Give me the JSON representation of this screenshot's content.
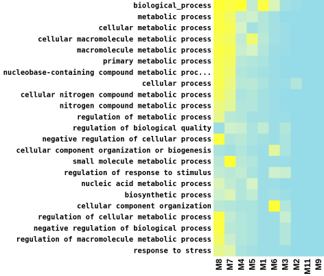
{
  "chart_data": {
    "type": "heatmap",
    "columns": [
      "M8",
      "M7",
      "M4",
      "M5",
      "M1",
      "M6",
      "M3",
      "M2",
      "M11",
      "M9"
    ],
    "rows": [
      "biological_process",
      "metabolic process",
      "cellular metabolic process",
      "cellular macromolecule metabolic process",
      "macromolecule metabolic process",
      "primary metabolic process",
      "nucleobase-containing compound metabolic proc...",
      "cellular process",
      "cellular nitrogen compound metabolic process",
      "nitrogen compound metabolic process",
      "regulation of metabolic process",
      "regulation of biological quality",
      "negative regulation of cellular process",
      "cellular component organization or biogenesis",
      "small molecule metabolic process",
      "regulation of response to stimulus",
      "nucleic acid metabolic process",
      "biosynthetic process",
      "cellular component organization",
      "regulation of cellular metabolic process",
      "negative regulation of biological process",
      "regulation of macromolecule metabolic process",
      "response to stress"
    ],
    "values": [
      [
        1.0,
        0.95,
        1.0,
        0.35,
        0.95,
        0.55,
        0.15,
        0.1,
        0.05,
        0.05
      ],
      [
        0.95,
        0.85,
        0.4,
        0.45,
        0.25,
        0.15,
        0.05,
        0.05,
        0.05,
        0.05
      ],
      [
        0.95,
        0.9,
        0.5,
        0.15,
        0.25,
        0.15,
        0.1,
        0.05,
        0.05,
        0.05
      ],
      [
        0.9,
        0.85,
        0.35,
        0.8,
        0.3,
        0.15,
        0.1,
        0.05,
        0.05,
        0.05
      ],
      [
        0.95,
        0.9,
        0.4,
        0.5,
        0.25,
        0.1,
        0.1,
        0.05,
        0.05,
        0.05
      ],
      [
        0.9,
        0.85,
        0.3,
        0.25,
        0.2,
        0.1,
        0.05,
        0.05,
        0.05,
        0.05
      ],
      [
        0.9,
        0.8,
        0.25,
        0.2,
        0.15,
        0.1,
        0.05,
        0.05,
        0.05,
        0.05
      ],
      [
        0.9,
        0.75,
        0.3,
        0.3,
        0.2,
        0.1,
        0.1,
        0.25,
        0.05,
        0.05
      ],
      [
        0.85,
        0.7,
        0.2,
        0.25,
        0.15,
        0.1,
        0.05,
        0.05,
        0.05,
        0.05
      ],
      [
        0.75,
        0.65,
        0.25,
        0.25,
        0.15,
        0.1,
        0.05,
        0.05,
        0.05,
        0.05
      ],
      [
        0.7,
        0.3,
        0.25,
        0.15,
        0.15,
        0.1,
        0.1,
        0.05,
        0.05,
        0.05
      ],
      [
        0.1,
        0.45,
        0.4,
        0.2,
        0.35,
        0.1,
        0.25,
        0.05,
        0.05,
        0.05
      ],
      [
        0.95,
        0.25,
        0.3,
        0.2,
        0.15,
        0.1,
        0.2,
        0.05,
        0.05,
        0.05
      ],
      [
        0.2,
        0.15,
        0.25,
        0.15,
        0.1,
        0.65,
        0.2,
        0.05,
        0.05,
        0.05
      ],
      [
        0.3,
        1.0,
        0.3,
        0.25,
        0.1,
        0.1,
        0.1,
        0.05,
        0.05,
        0.05
      ],
      [
        0.35,
        0.3,
        0.35,
        0.2,
        0.1,
        0.45,
        0.4,
        0.05,
        0.05,
        0.05
      ],
      [
        0.55,
        0.35,
        0.25,
        0.5,
        0.1,
        0.1,
        0.05,
        0.05,
        0.05,
        0.05
      ],
      [
        0.45,
        0.55,
        0.25,
        0.35,
        0.1,
        0.15,
        0.1,
        0.05,
        0.05,
        0.05
      ],
      [
        0.3,
        0.25,
        0.2,
        0.2,
        0.1,
        1.0,
        0.25,
        0.05,
        0.05,
        0.05
      ],
      [
        0.95,
        0.35,
        0.25,
        0.2,
        0.1,
        0.1,
        0.4,
        0.05,
        0.05,
        0.05
      ],
      [
        0.95,
        0.3,
        0.25,
        0.2,
        0.1,
        0.1,
        0.25,
        0.05,
        0.05,
        0.05
      ],
      [
        0.85,
        0.4,
        0.25,
        0.2,
        0.1,
        0.1,
        0.25,
        0.05,
        0.05,
        0.05
      ],
      [
        0.7,
        0.6,
        0.2,
        0.15,
        0.1,
        0.1,
        0.1,
        0.05,
        0.05,
        0.05
      ]
    ],
    "color_scale": {
      "low": "#8fd8ec",
      "mid": "#d6f3c8",
      "high": "#ffff33"
    }
  }
}
